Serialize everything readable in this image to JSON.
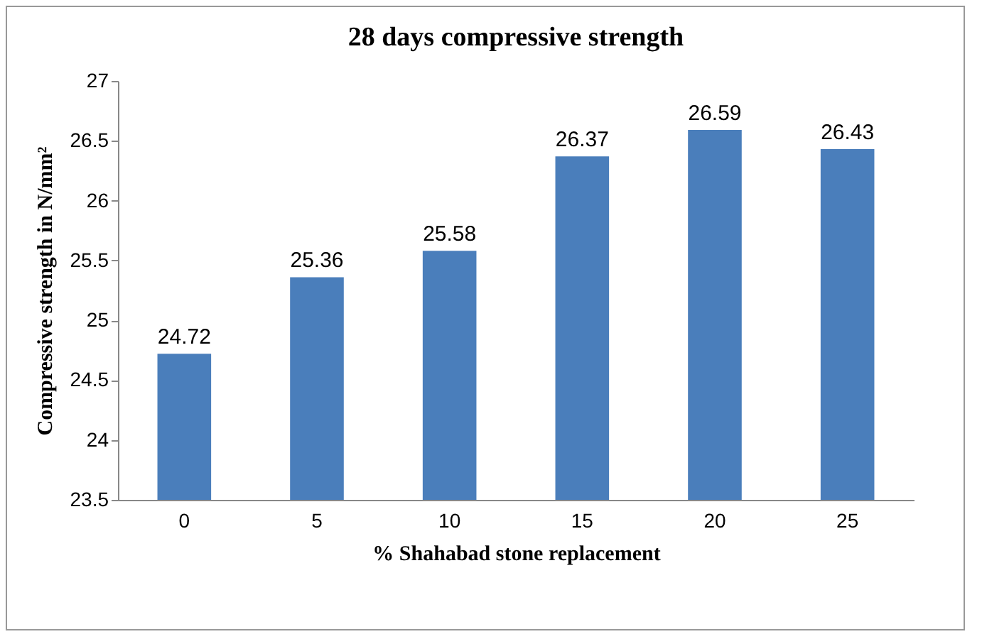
{
  "chart_data": {
    "type": "bar",
    "title": "28 days compressive strength",
    "xlabel": "% Shahabad stone replacement",
    "ylabel": "Compressive  strength in N/mm²",
    "categories": [
      "0",
      "5",
      "10",
      "15",
      "20",
      "25"
    ],
    "values": [
      24.72,
      25.36,
      25.58,
      26.37,
      26.59,
      26.43
    ],
    "color": "#4a7ebb",
    "data_labels": true,
    "ylim": [
      23.5,
      27
    ],
    "yticks": [
      23.5,
      24,
      24.5,
      25,
      25.5,
      26,
      26.5,
      27
    ],
    "grid": false
  }
}
